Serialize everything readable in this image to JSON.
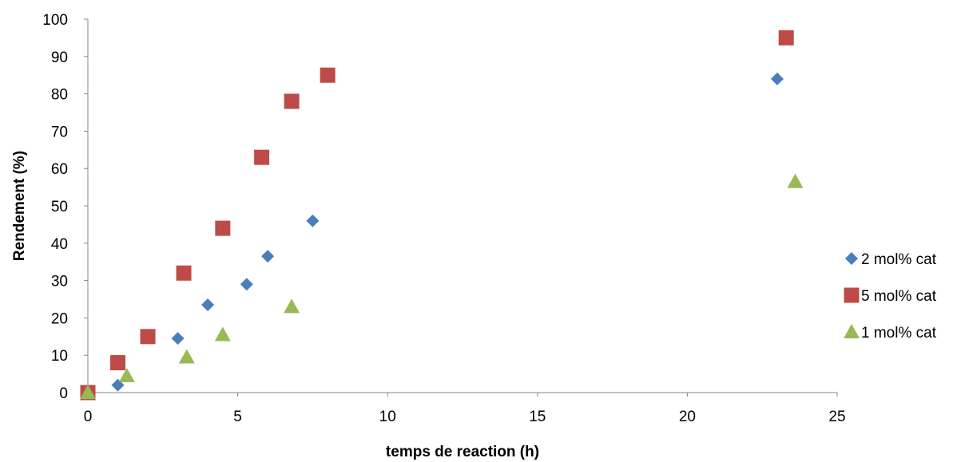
{
  "chart_data": {
    "type": "scatter",
    "xlabel": "temps de reaction (h)",
    "ylabel": "Rendement (%)",
    "xlim": [
      0,
      25
    ],
    "ylim": [
      0,
      100
    ],
    "xticks": [
      "0",
      "5",
      "10",
      "15",
      "20",
      "25"
    ],
    "yticks": [
      "0",
      "10",
      "20",
      "30",
      "40",
      "50",
      "60",
      "70",
      "80",
      "90",
      "100"
    ],
    "grid": false,
    "legend_position": "right",
    "series": [
      {
        "name": "2 mol% cat",
        "marker": "diamond",
        "color": "#4a7ebb",
        "points": [
          [
            1,
            2
          ],
          [
            3,
            14.5
          ],
          [
            4,
            23.5
          ],
          [
            5.3,
            29
          ],
          [
            6,
            36.5
          ],
          [
            7.5,
            46
          ],
          [
            23,
            84
          ]
        ]
      },
      {
        "name": "5 mol% cat",
        "marker": "square",
        "color": "#be4b48",
        "points": [
          [
            0,
            0
          ],
          [
            1,
            8
          ],
          [
            2,
            15
          ],
          [
            3.2,
            32
          ],
          [
            4.5,
            44
          ],
          [
            5.8,
            63
          ],
          [
            6.8,
            78
          ],
          [
            8,
            85
          ],
          [
            23.3,
            95
          ]
        ]
      },
      {
        "name": "1 mol% cat",
        "marker": "triangle",
        "color": "#98b954",
        "points": [
          [
            0,
            0
          ],
          [
            1.3,
            4.5
          ],
          [
            3.3,
            9.5
          ],
          [
            4.5,
            15.5
          ],
          [
            6.8,
            23
          ],
          [
            23.6,
            56.5
          ]
        ]
      }
    ]
  }
}
